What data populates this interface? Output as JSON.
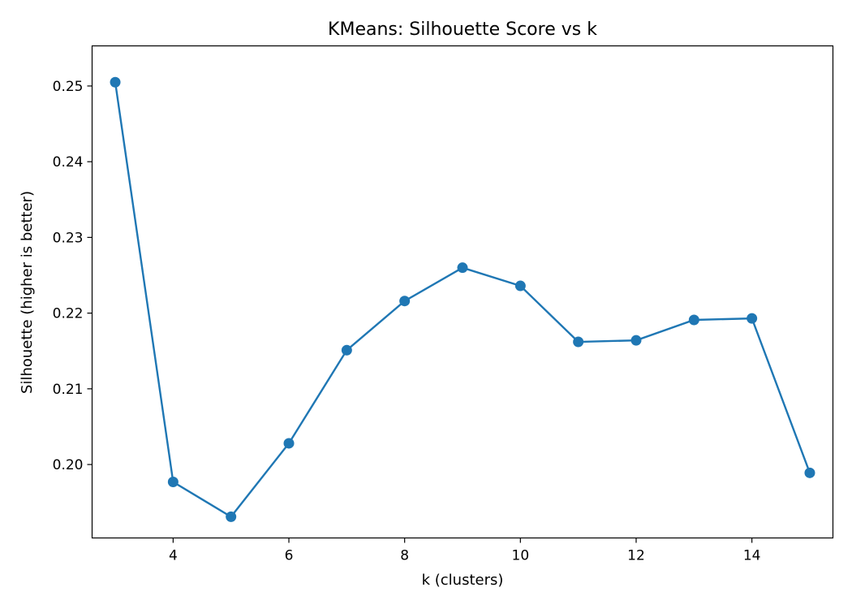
{
  "chart_data": {
    "type": "line",
    "title": "KMeans: Silhouette Score vs k",
    "xlabel": "k (clusters)",
    "ylabel": "Silhouette (higher is better)",
    "xlim": [
      2.6,
      15.4
    ],
    "ylim": [
      0.1903,
      0.2553
    ],
    "x_ticks": [
      4,
      6,
      8,
      10,
      12,
      14
    ],
    "y_ticks": [
      0.2,
      0.21,
      0.22,
      0.23,
      0.24,
      0.25
    ],
    "x_tick_labels": [
      "4",
      "6",
      "8",
      "10",
      "12",
      "14"
    ],
    "y_tick_labels": [
      "0.20",
      "0.21",
      "0.22",
      "0.23",
      "0.24",
      "0.25"
    ],
    "grid": false,
    "color": "#1f77b4",
    "marker": "circle",
    "series": [
      {
        "x": [
          3,
          4,
          5,
          6,
          7,
          8,
          9,
          10,
          11,
          12,
          13,
          14,
          15
        ],
        "values": [
          0.2505,
          0.1977,
          0.1931,
          0.2028,
          0.2151,
          0.2216,
          0.226,
          0.2236,
          0.2162,
          0.2164,
          0.2191,
          0.2193,
          0.1989
        ]
      }
    ]
  }
}
